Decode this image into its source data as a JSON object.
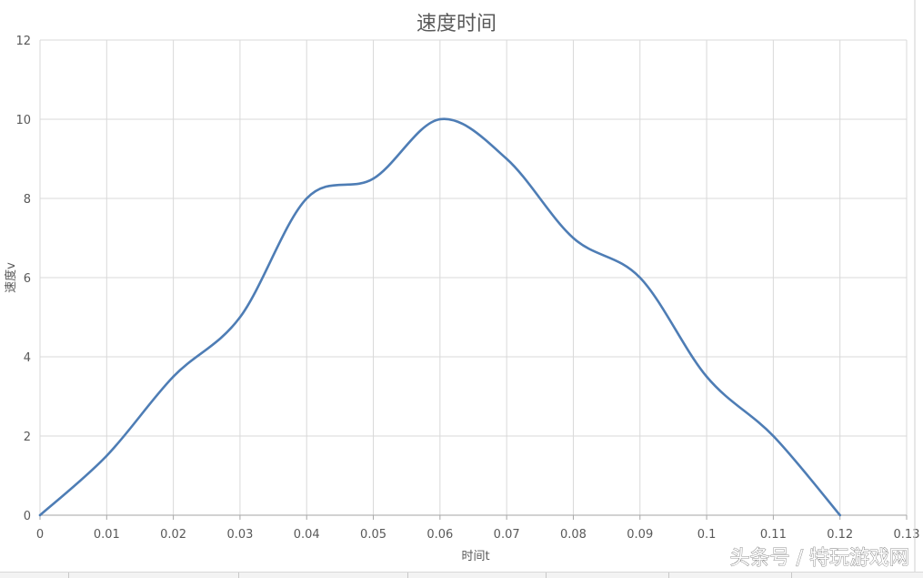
{
  "chart_data": {
    "type": "line",
    "title": "速度时间",
    "xlabel": "时间t",
    "ylabel": "速度v",
    "x": [
      0,
      0.01,
      0.02,
      0.03,
      0.04,
      0.05,
      0.06,
      0.07,
      0.08,
      0.09,
      0.1,
      0.11,
      0.12
    ],
    "series": [
      {
        "values": [
          0,
          1.5,
          3.5,
          5,
          8,
          8.5,
          10,
          9,
          7,
          6,
          3.5,
          2,
          0
        ],
        "color": "#4e7db5",
        "smooth": true
      }
    ],
    "xlim": [
      0,
      0.13
    ],
    "ylim": [
      0,
      12
    ],
    "x_ticks": [
      "0",
      "0.01",
      "0.02",
      "0.03",
      "0.04",
      "0.05",
      "0.06",
      "0.07",
      "0.08",
      "0.09",
      "0.1",
      "0.11",
      "0.12",
      "0.13"
    ],
    "y_ticks": [
      "0",
      "2",
      "4",
      "6",
      "8",
      "10",
      "12"
    ],
    "grid": true,
    "legend": "none"
  },
  "watermark": "头条号 / 特玩游戏网",
  "colors": {
    "line": "#4e7db5",
    "grid": "#d9d9d9",
    "text": "#595959"
  }
}
